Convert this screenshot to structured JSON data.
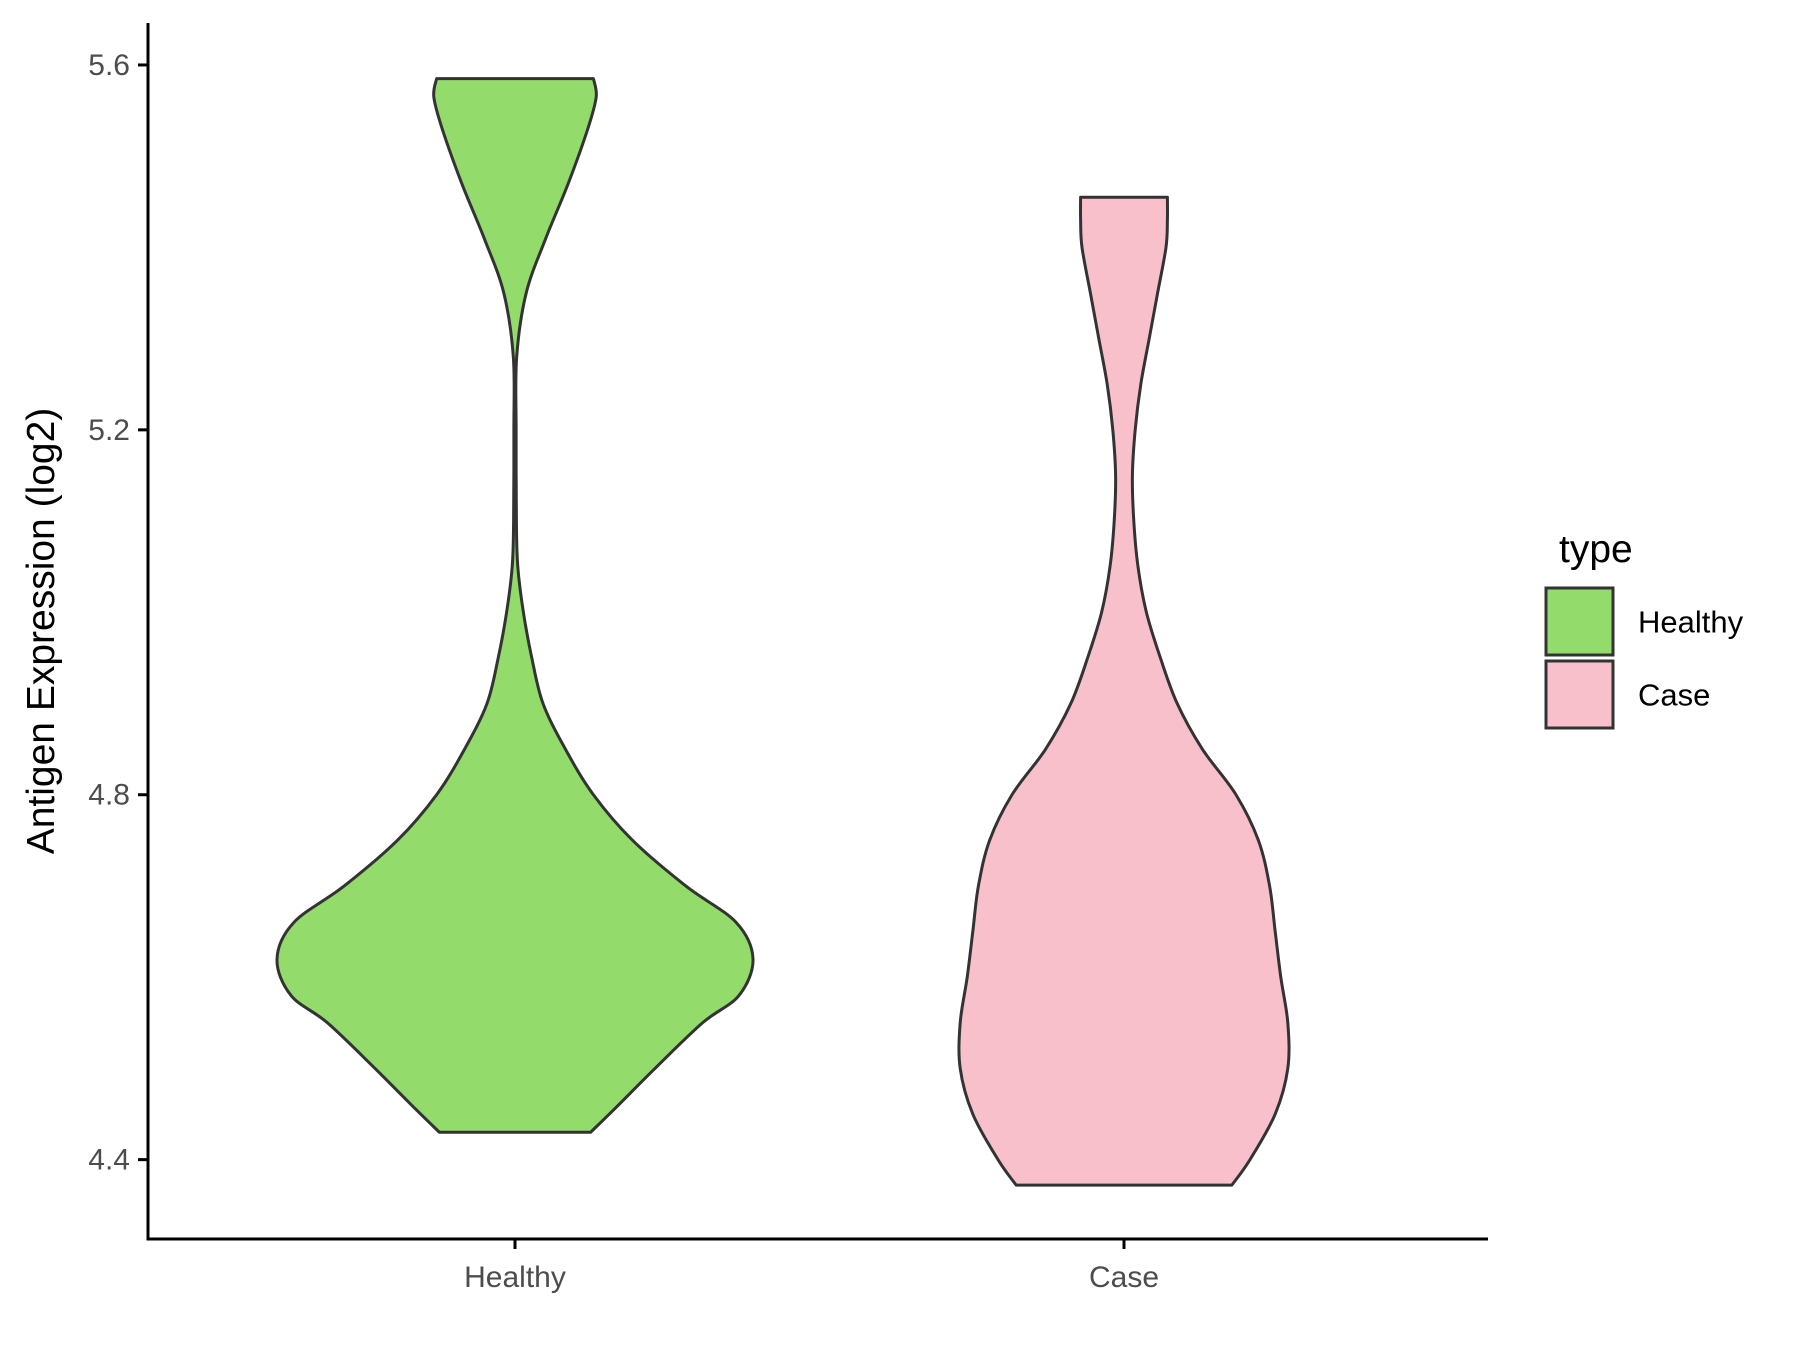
{
  "chart_data": {
    "type": "violin",
    "title": "",
    "xlabel": "",
    "ylabel": "Antigen Expression (log2)",
    "categories": [
      "Healthy",
      "Case"
    ],
    "y_ticks": [
      "4.4",
      "4.8",
      "5.2",
      "5.6"
    ],
    "ylim": [
      4.313,
      5.646
    ],
    "grid": false,
    "legend": {
      "title": "type",
      "placement": "right",
      "entries": [
        "Healthy",
        "Case"
      ]
    },
    "series": [
      {
        "name": "Healthy",
        "color": "#93dc6b",
        "min": 4.43,
        "max": 5.585,
        "density": [
          [
            4.43,
            0.27
          ],
          [
            4.46,
            0.37
          ],
          [
            4.5,
            0.5
          ],
          [
            4.55,
            0.67
          ],
          [
            4.58,
            0.8
          ],
          [
            4.62,
            0.85
          ],
          [
            4.66,
            0.79
          ],
          [
            4.7,
            0.61
          ],
          [
            4.75,
            0.42
          ],
          [
            4.8,
            0.28
          ],
          [
            4.85,
            0.18
          ],
          [
            4.9,
            0.1
          ],
          [
            4.95,
            0.06
          ],
          [
            5.0,
            0.03
          ],
          [
            5.05,
            0.01
          ],
          [
            5.1,
            0.005
          ],
          [
            5.2,
            0.004
          ],
          [
            5.28,
            0.006
          ],
          [
            5.35,
            0.04
          ],
          [
            5.41,
            0.11
          ],
          [
            5.47,
            0.19
          ],
          [
            5.53,
            0.26
          ],
          [
            5.565,
            0.29
          ],
          [
            5.585,
            0.28
          ]
        ]
      },
      {
        "name": "Case",
        "color": "#f7c0cb",
        "min": 4.372,
        "max": 5.455,
        "density": [
          [
            4.372,
            0.385
          ],
          [
            4.4,
            0.45
          ],
          [
            4.45,
            0.54
          ],
          [
            4.5,
            0.585
          ],
          [
            4.55,
            0.585
          ],
          [
            4.6,
            0.56
          ],
          [
            4.65,
            0.54
          ],
          [
            4.7,
            0.52
          ],
          [
            4.75,
            0.48
          ],
          [
            4.8,
            0.4
          ],
          [
            4.85,
            0.28
          ],
          [
            4.9,
            0.19
          ],
          [
            4.95,
            0.13
          ],
          [
            5.0,
            0.08
          ],
          [
            5.05,
            0.05
          ],
          [
            5.1,
            0.035
          ],
          [
            5.15,
            0.03
          ],
          [
            5.2,
            0.04
          ],
          [
            5.25,
            0.06
          ],
          [
            5.3,
            0.09
          ],
          [
            5.35,
            0.12
          ],
          [
            5.4,
            0.15
          ],
          [
            5.43,
            0.155
          ],
          [
            5.455,
            0.155
          ]
        ]
      }
    ]
  }
}
